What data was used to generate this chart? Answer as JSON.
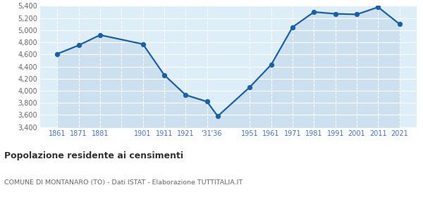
{
  "years": [
    1861,
    1871,
    1881,
    1901,
    1911,
    1921,
    1931,
    1936,
    1951,
    1961,
    1971,
    1981,
    1991,
    2001,
    2011,
    2021
  ],
  "values": [
    4608,
    4750,
    4920,
    4770,
    4260,
    3930,
    3820,
    3580,
    4060,
    4430,
    5050,
    5300,
    5270,
    5260,
    5380,
    5100
  ],
  "tick_positions": [
    1861,
    1871,
    1881,
    1901,
    1911,
    1921,
    1933,
    1951,
    1961,
    1971,
    1981,
    1991,
    2001,
    2011,
    2021
  ],
  "tick_labels": [
    "1861",
    "1871",
    "1881",
    "1901",
    "1911",
    "1921",
    "'31'36",
    "1951",
    "1961",
    "1971",
    "1981",
    "1991",
    "2001",
    "2011",
    "2021"
  ],
  "vgrid_positions": [
    1861,
    1871,
    1881,
    1891,
    1901,
    1911,
    1921,
    1931,
    1951,
    1961,
    1971,
    1981,
    1991,
    2001,
    2011,
    2021
  ],
  "ylim": [
    3400,
    5400
  ],
  "yticks": [
    3400,
    3600,
    3800,
    4000,
    4200,
    4400,
    4600,
    4800,
    5000,
    5200,
    5400
  ],
  "ytick_labels": [
    "3,400",
    "3,600",
    "3,800",
    "4,000",
    "4,200",
    "4,400",
    "4,600",
    "4,800",
    "5,000",
    "5,200",
    "5,400"
  ],
  "line_color": "#1a5fa8",
  "fill_color": "#cce0f0",
  "marker_color": "#1a5fa8",
  "bg_color": "#ddeef8",
  "grid_color": "#ffffff",
  "tick_label_color": "#4472c4",
  "ytick_label_color": "#666666",
  "title": "Popolazione residente ai censimenti",
  "subtitle": "COMUNE DI MONTANARO (TO) - Dati ISTAT - Elaborazione TUTTITALIA.IT",
  "title_color": "#333333",
  "subtitle_color": "#666666",
  "xlim_left": 1853,
  "xlim_right": 2029
}
